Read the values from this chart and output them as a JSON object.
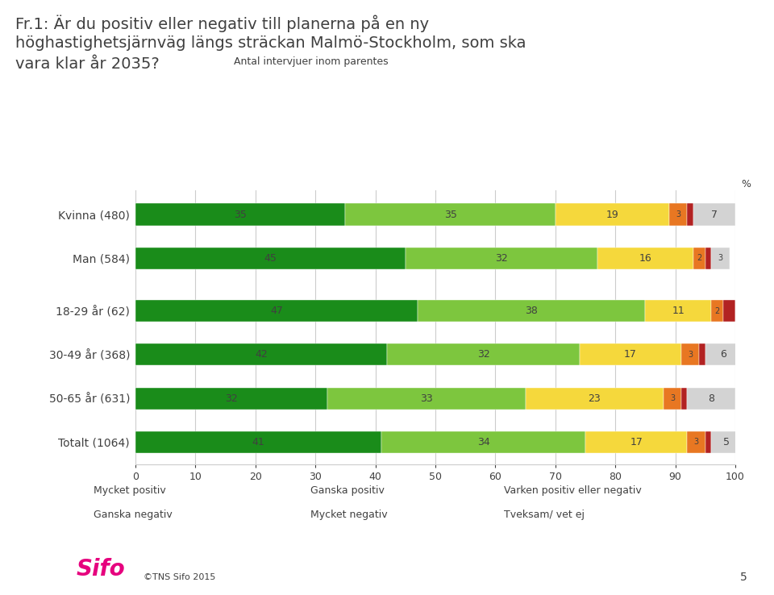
{
  "title_main": "Fr.1: Är du positiv eller negativ till planerna på en ny\nhöghastighetsjärnväg längs sträckan Malmö-Stockholm, som ska\nvara klar år 2035?",
  "title_sub": "Antal intervjuer inom parentes",
  "categories": [
    "Totalt (1064)",
    "50-65 år (631)",
    "30-49 år (368)",
    "18-29 år (62)",
    "Man (584)",
    "Kvinna (480)"
  ],
  "group_breaks": [
    3
  ],
  "series_order": [
    "Mycket positiv",
    "Ganska positiv",
    "Varken positiv eller negativ",
    "Ganska negativ",
    "Mycket negativ",
    "Tveksam/ vet ej"
  ],
  "series_values": {
    "Mycket positiv": [
      41,
      32,
      42,
      47,
      45,
      35
    ],
    "Ganska positiv": [
      34,
      33,
      32,
      38,
      32,
      35
    ],
    "Varken positiv eller negativ": [
      17,
      23,
      17,
      11,
      16,
      19
    ],
    "Ganska negativ": [
      3,
      3,
      3,
      2,
      2,
      3
    ],
    "Mycket negativ": [
      1,
      1,
      1,
      2,
      1,
      1
    ],
    "Tveksam/ vet ej": [
      5,
      8,
      6,
      0,
      3,
      7
    ]
  },
  "labels_display": {
    "Mycket positiv": [
      "41",
      "32",
      "42",
      "47",
      "45",
      "35"
    ],
    "Ganska positiv": [
      "34",
      "33",
      "32",
      "38",
      "32",
      "35"
    ],
    "Varken positiv eller negativ": [
      "17",
      "23",
      "17",
      "11",
      "16",
      "19"
    ],
    "Ganska negativ": [
      "3",
      "3",
      "3",
      "2",
      "2",
      "3"
    ],
    "Mycket negativ": [
      "",
      "",
      "",
      "",
      "",
      ""
    ],
    "Tveksam/ vet ej": [
      "5",
      "8",
      "6",
      "",
      "3",
      "7"
    ]
  },
  "colors": {
    "Mycket positiv": "#1a8c1a",
    "Ganska positiv": "#7dc63e",
    "Varken positiv eller negativ": "#f5d83c",
    "Ganska negativ": "#e87722",
    "Mycket negativ": "#b22222",
    "Tveksam/ vet ej": "#d3d3d3"
  },
  "background_color": "#ffffff",
  "text_color": "#404040",
  "grid_color": "#cccccc",
  "footer_text": "©TNS Sifo 2015",
  "page_number": "5",
  "sifo_color": "#e6007e",
  "bar_height": 0.5
}
